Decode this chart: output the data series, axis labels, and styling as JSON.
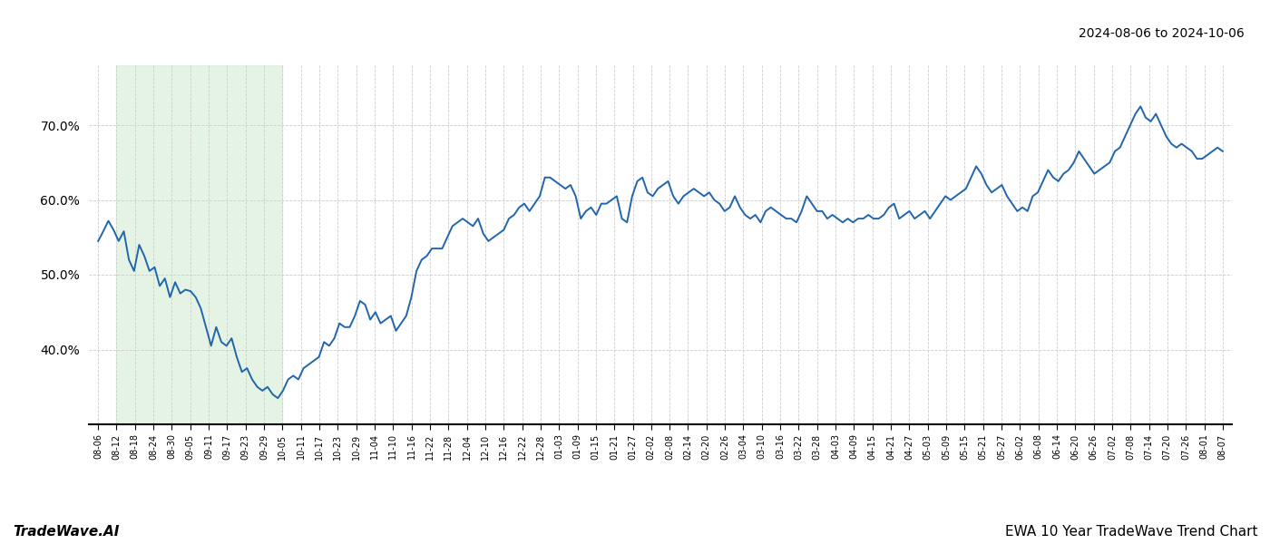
{
  "title_top_right": "2024-08-06 to 2024-10-06",
  "title_bottom_left": "TradeWave.AI",
  "title_bottom_right": "EWA 10 Year TradeWave Trend Chart",
  "line_color": "#2166ac",
  "line_width": 1.4,
  "shading_color": "#d4ecd4",
  "shading_alpha": 0.6,
  "background_color": "#ffffff",
  "grid_color": "#cccccc",
  "ylim": [
    30,
    78
  ],
  "yticks": [
    40.0,
    50.0,
    60.0,
    70.0
  ],
  "shade_start_label": "08-12",
  "shade_end_label": "10-05",
  "x_labels": [
    "08-06",
    "08-12",
    "08-18",
    "08-24",
    "08-30",
    "09-05",
    "09-11",
    "09-17",
    "09-23",
    "09-29",
    "10-05",
    "10-11",
    "10-17",
    "10-23",
    "10-29",
    "11-04",
    "11-10",
    "11-16",
    "11-22",
    "11-28",
    "12-04",
    "12-10",
    "12-16",
    "12-22",
    "12-28",
    "01-03",
    "01-09",
    "01-15",
    "01-21",
    "01-27",
    "02-02",
    "02-08",
    "02-14",
    "02-20",
    "02-26",
    "03-04",
    "03-10",
    "03-16",
    "03-22",
    "03-28",
    "04-03",
    "04-09",
    "04-15",
    "04-21",
    "04-27",
    "05-03",
    "05-09",
    "05-15",
    "05-21",
    "05-27",
    "06-02",
    "06-08",
    "06-14",
    "06-20",
    "06-26",
    "07-02",
    "07-08",
    "07-14",
    "07-20",
    "07-26",
    "08-01",
    "08-07"
  ],
  "values": [
    54.5,
    55.8,
    57.2,
    56.0,
    54.5,
    55.8,
    52.0,
    50.5,
    54.0,
    52.5,
    50.5,
    51.0,
    48.5,
    49.5,
    47.0,
    49.0,
    47.5,
    48.0,
    47.8,
    47.0,
    45.5,
    43.0,
    40.5,
    43.0,
    41.0,
    40.5,
    41.5,
    39.0,
    37.0,
    37.5,
    36.0,
    35.0,
    34.5,
    35.0,
    34.0,
    33.5,
    34.5,
    36.0,
    36.5,
    36.0,
    37.5,
    38.0,
    38.5,
    39.0,
    41.0,
    40.5,
    41.5,
    43.5,
    43.0,
    43.0,
    44.5,
    46.5,
    46.0,
    44.0,
    45.0,
    43.5,
    44.0,
    44.5,
    42.5,
    43.5,
    44.5,
    47.0,
    50.5,
    52.0,
    52.5,
    53.5,
    53.5,
    53.5,
    55.0,
    56.5,
    57.0,
    57.5,
    57.0,
    56.5,
    57.5,
    55.5,
    54.5,
    55.0,
    55.5,
    56.0,
    57.5,
    58.0,
    59.0,
    59.5,
    58.5,
    59.5,
    60.5,
    63.0,
    63.0,
    62.5,
    62.0,
    61.5,
    62.0,
    60.5,
    57.5,
    58.5,
    59.0,
    58.0,
    59.5,
    59.5,
    60.0,
    60.5,
    57.5,
    57.0,
    60.5,
    62.5,
    63.0,
    61.0,
    60.5,
    61.5,
    62.0,
    62.5,
    60.5,
    59.5,
    60.5,
    61.0,
    61.5,
    61.0,
    60.5,
    61.0,
    60.0,
    59.5,
    58.5,
    59.0,
    60.5,
    59.0,
    58.0,
    57.5,
    58.0,
    57.0,
    58.5,
    59.0,
    58.5,
    58.0,
    57.5,
    57.5,
    57.0,
    58.5,
    60.5,
    59.5,
    58.5,
    58.5,
    57.5,
    58.0,
    57.5,
    57.0,
    57.5,
    57.0,
    57.5,
    57.5,
    58.0,
    57.5,
    57.5,
    58.0,
    59.0,
    59.5,
    57.5,
    58.0,
    58.5,
    57.5,
    58.0,
    58.5,
    57.5,
    58.5,
    59.5,
    60.5,
    60.0,
    60.5,
    61.0,
    61.5,
    63.0,
    64.5,
    63.5,
    62.0,
    61.0,
    61.5,
    62.0,
    60.5,
    59.5,
    58.5,
    59.0,
    58.5,
    60.5,
    61.0,
    62.5,
    64.0,
    63.0,
    62.5,
    63.5,
    64.0,
    65.0,
    66.5,
    65.5,
    64.5,
    63.5,
    64.0,
    64.5,
    65.0,
    66.5,
    67.0,
    68.5,
    70.0,
    71.5,
    72.5,
    71.0,
    70.5,
    71.5,
    70.0,
    68.5,
    67.5,
    67.0,
    67.5,
    67.0,
    66.5,
    65.5,
    65.5,
    66.0,
    66.5,
    67.0,
    66.5
  ]
}
